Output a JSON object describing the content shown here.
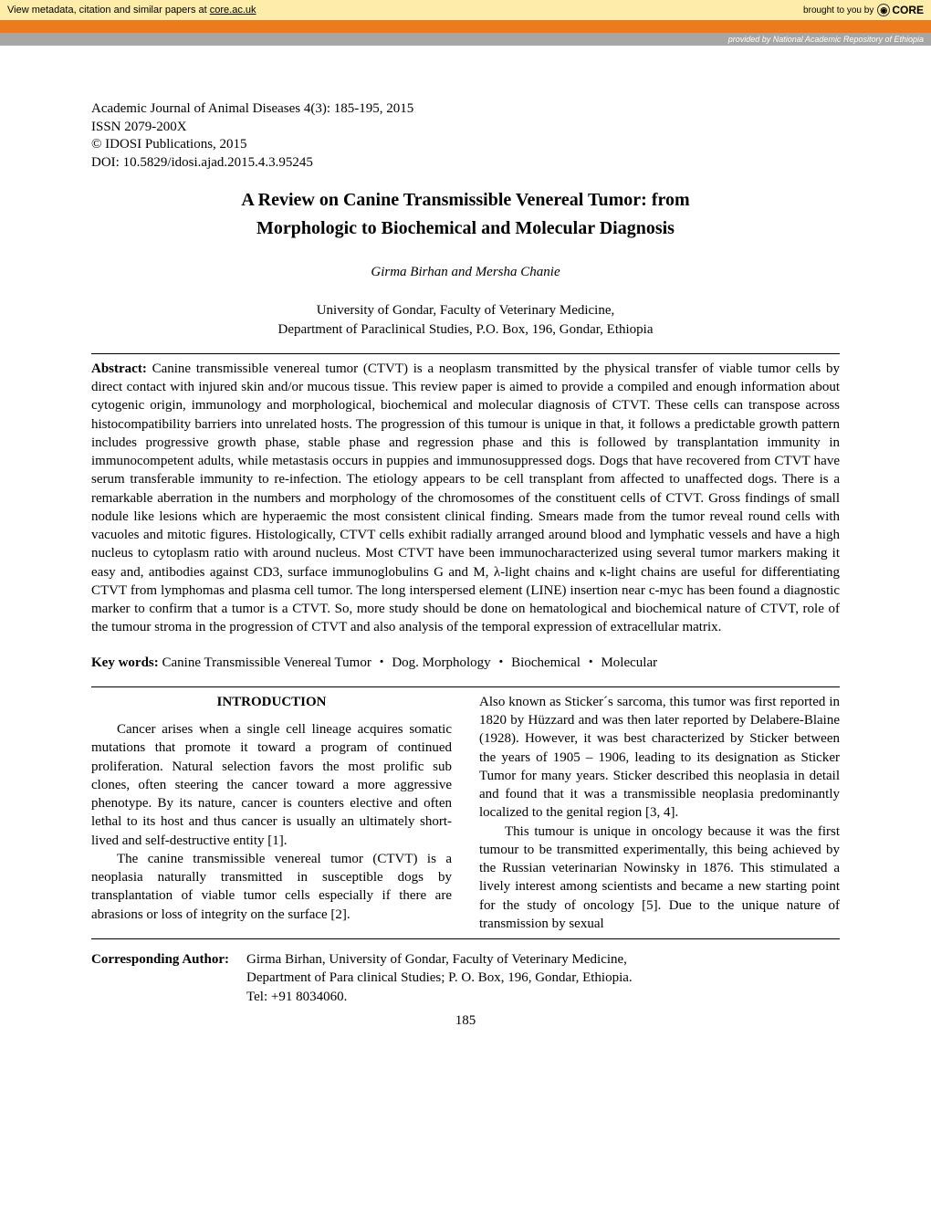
{
  "topbar": {
    "bg_color": "#feedaa",
    "left_text": "View metadata, citation and similar papers at ",
    "left_link": "core.ac.uk",
    "right_prefix": "brought to you by",
    "core_label": "CORE"
  },
  "orangebar_color": "#ec7b1e",
  "providedbar": {
    "bg_color": "#a6a6a6",
    "text_prefix": "provided by ",
    "text_link": "National Academic Repository of Ethiopia"
  },
  "journal": {
    "line1": "Academic Journal of Animal Diseases 4(3): 185-195, 2015",
    "line2": "ISSN 2079-200X",
    "line3": "© IDOSI Publications, 2015",
    "line4": "DOI: 10.5829/idosi.ajad.2015.4.3.95245"
  },
  "title_line1": "A Review on Canine Transmissible Venereal Tumor: from",
  "title_line2": "Morphologic to Biochemical and Molecular Diagnosis",
  "authors": "Girma Birhan and Mersha Chanie",
  "affil_line1": "University of Gondar, Faculty of Veterinary Medicine,",
  "affil_line2": "Department of Paraclinical Studies, P.O. Box, 196, Gondar, Ethiopia",
  "abstract_label": "Abstract:",
  "abstract_text": " Canine transmissible venereal tumor (CTVT) is a neoplasm transmitted by the physical transfer of viable tumor cells by direct contact with injured skin and/or mucous tissue. This review paper is aimed to provide a compiled and enough information about cytogenic origin, immunology and morphological, biochemical and molecular diagnosis of CTVT. These cells can transpose across histocompatibility barriers into unrelated hosts. The progression of this tumour is unique in that, it follows a predictable growth pattern includes progressive growth phase, stable phase and regression phase and this is followed by transplantation immunity  in  immunocompetent  adults,  while metastasis occurs in puppies and immunosuppressed dogs. Dogs that have recovered from CTVT have serum transferable immunity to re-infection. The etiology appears to be cell transplant from affected to unaffected dogs. There is a remarkable aberration in the numbers and morphology of the chromosomes of the constituent cells of CTVT. Gross findings of small nodule like lesions which are hyperaemic the most consistent clinical finding. Smears made from the tumor reveal round cells with vacuoles and mitotic figures. Histologically, CTVT cells exhibit radially arranged around blood and lymphatic vessels and have a high nucleus to cytoplasm ratio with around nucleus. Most CTVT have been immunocharacterized using several tumor markers making it easy and, antibodies against CD3, surface immunoglobulins G and M, λ-light chains and κ-light chains are useful for differentiating CTVT from lymphomas and plasma cell tumor. The long interspersed element (LINE) insertion near c-myc has been found a diagnostic marker to confirm that a tumor is a CTVT. So, more study should be done on hematological and biochemical nature of CTVT, role of the tumour stroma in the progression of CTVT and also analysis of the temporal expression of extracellular matrix.",
  "keywords_label": "Key words:",
  "keywords_text": " Canine Transmissible Venereal Tumor ・ Dog. Morphology ・ Biochemical ・ Molecular",
  "intro_heading": "INTRODUCTION",
  "col1_p1": "Cancer arises when a single cell lineage acquires somatic mutations that promote it toward a program of continued proliferation. Natural selection favors the most prolific sub clones, often steering the cancer toward a more aggressive phenotype. By its nature, cancer is counters elective and often lethal to its host and thus cancer is usually an ultimately short-lived and self-destructive entity [1].",
  "col1_p2": "The canine transmissible venereal tumor (CTVT) is a neoplasia naturally transmitted in susceptible dogs by transplantation of viable tumor cells  especially  if  there are  abrasions  or  loss  of integrity on the surface [2].",
  "col2_p1": "Also known as Sticker´s sarcoma, this tumor was first reported in 1820 by Hüzzard and was then later reported by Delabere-Blaine (1928). However, it was best characterized by Sticker between the years of 1905 – 1906, leading to its designation as Sticker Tumor for many years. Sticker described this neoplasia in detail and found that it was a transmissible neoplasia predominantly localized to the genital region [3, 4].",
  "col2_p2": "This tumour is unique in oncology because it was the first tumour to be transmitted experimentally, this being achieved by the Russian veterinarian Nowinsky in 1876. This stimulated a lively interest among scientists and became a new starting point for the study of oncology [5]. Due to the unique nature of transmission by sexual",
  "corr_label": "Corresponding Author:",
  "corr_line1": "Girma Birhan, University of Gondar, Faculty of Veterinary Medicine,",
  "corr_line2": "Department of Para clinical Studies; P. O. Box, 196, Gondar, Ethiopia.",
  "corr_line3": "Tel: +91 8034060.",
  "page_number": "185"
}
